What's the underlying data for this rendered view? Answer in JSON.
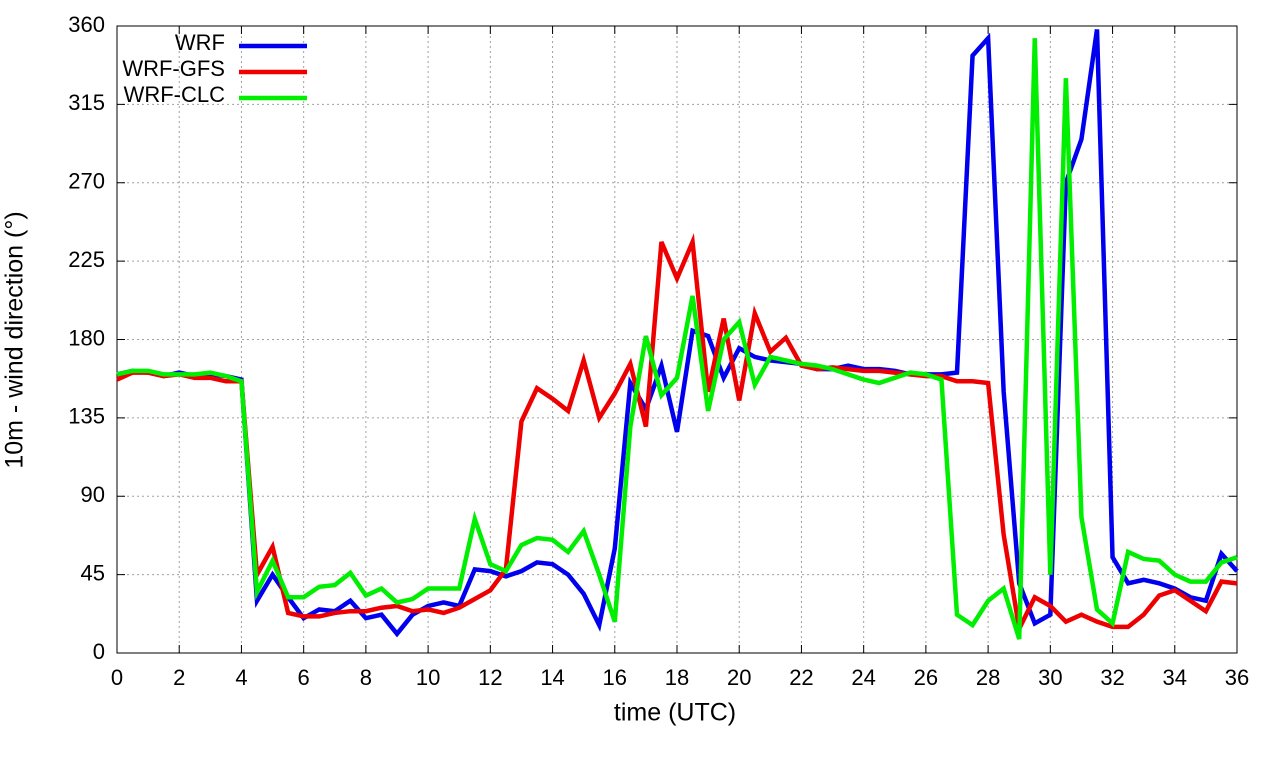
{
  "chart_data": {
    "type": "line",
    "xlabel": "time (UTC)",
    "ylabel": "10m - wind direction (°)",
    "x": [
      0,
      0.5,
      1,
      1.5,
      2,
      2.5,
      3,
      3.5,
      4,
      4.5,
      5,
      5.5,
      6,
      6.5,
      7,
      7.5,
      8,
      8.5,
      9,
      9.5,
      10,
      10.5,
      11,
      11.5,
      12,
      12.5,
      13,
      13.5,
      14,
      14.5,
      15,
      15.5,
      16,
      16.5,
      17,
      17.5,
      18,
      18.5,
      19,
      19.5,
      20,
      20.5,
      21,
      21.5,
      22,
      22.5,
      23,
      23.5,
      24,
      24.5,
      25,
      25.5,
      26,
      26.5,
      27,
      27.5,
      28,
      28.5,
      29,
      29.5,
      30,
      30.5,
      31,
      31.5,
      32,
      32.5,
      33,
      33.5,
      34,
      34.5,
      35,
      35.5,
      36
    ],
    "xlim": [
      0,
      36
    ],
    "xticks": [
      0,
      2,
      4,
      6,
      8,
      10,
      12,
      14,
      16,
      18,
      20,
      22,
      24,
      26,
      28,
      30,
      32,
      34,
      36
    ],
    "ylim": [
      0,
      360
    ],
    "yticks": [
      0,
      45,
      90,
      135,
      180,
      225,
      270,
      315,
      360
    ],
    "grid": true,
    "legend": "top-left",
    "series": [
      {
        "name": "WRF",
        "color": "#0000ee",
        "values": [
          160,
          162,
          161,
          159,
          161,
          159,
          160,
          159,
          157,
          30,
          45,
          32,
          20,
          25,
          24,
          30,
          20,
          22,
          11,
          22,
          27,
          29,
          27,
          48,
          47,
          44,
          47,
          52,
          51,
          45,
          34,
          16,
          60,
          155,
          140,
          165,
          127,
          185,
          182,
          158,
          175,
          170,
          168,
          167,
          166,
          163,
          163,
          165,
          163,
          163,
          162,
          160,
          160,
          160,
          161,
          343,
          353,
          150,
          40,
          17,
          22,
          270,
          295,
          358,
          55,
          40,
          42,
          40,
          37,
          32,
          30,
          57,
          47
        ]
      },
      {
        "name": "WRF-GFS",
        "color": "#ee0000",
        "values": [
          157,
          161,
          161,
          159,
          160,
          158,
          158,
          156,
          156,
          45,
          61,
          23,
          21,
          21,
          23,
          24,
          24,
          26,
          27,
          24,
          25,
          23,
          26,
          31,
          36,
          48,
          133,
          152,
          146,
          139,
          168,
          135,
          149,
          166,
          130,
          236,
          215,
          236,
          150,
          192,
          145,
          195,
          173,
          181,
          165,
          163,
          164,
          163,
          162,
          162,
          161,
          160,
          159,
          159,
          156,
          156,
          155,
          68,
          14,
          32,
          27,
          18,
          22,
          18,
          15,
          15,
          22,
          33,
          36,
          30,
          24,
          41,
          40
        ]
      },
      {
        "name": "WRF-CLC",
        "color": "#00ee00",
        "values": [
          160,
          162,
          162,
          160,
          160,
          160,
          161,
          159,
          156,
          35,
          53,
          32,
          32,
          38,
          39,
          46,
          33,
          37,
          29,
          31,
          37,
          37,
          37,
          77,
          51,
          47,
          62,
          66,
          65,
          58,
          70,
          45,
          18,
          130,
          182,
          148,
          158,
          205,
          139,
          180,
          190,
          154,
          170,
          168,
          166,
          165,
          163,
          160,
          157,
          155,
          158,
          161,
          160,
          157,
          22,
          16,
          30,
          37,
          8,
          353,
          45,
          330,
          78,
          25,
          17,
          58,
          54,
          53,
          45,
          41,
          41,
          52,
          55
        ]
      }
    ]
  }
}
